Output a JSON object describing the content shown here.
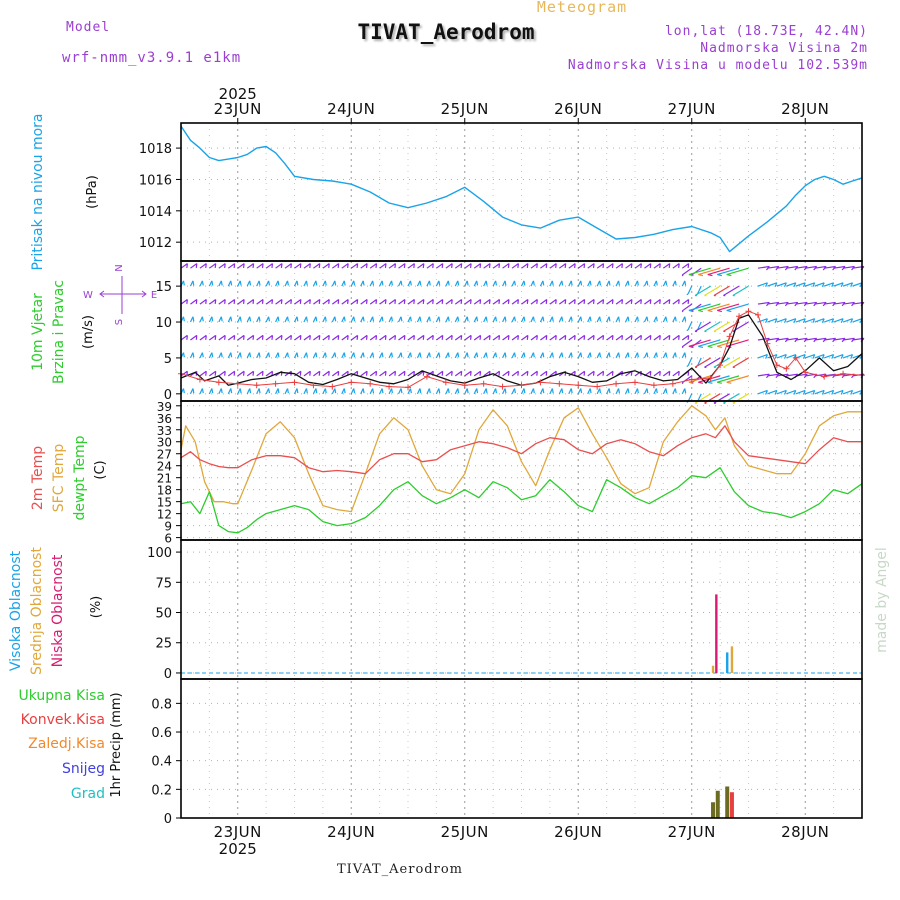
{
  "header": {
    "model_label": "Model",
    "model_name": "wrf-nmm_v3.9.1 e1km",
    "meteogram_label": "Meteogram",
    "station_title": "TIVAT_Aerodrom",
    "lonlat": "lon,lat (18.73E, 42.4N)",
    "elevation": "Nadmorska Visina 2m",
    "model_elevation": "Nadmorska Visina u modelu 102.539m"
  },
  "footer": {
    "station": "TIVAT_Aerodrom"
  },
  "watermark": "made by Angel",
  "time_axis": {
    "year": "2025",
    "days": [
      "23JUN",
      "24JUN",
      "25JUN",
      "26JUN",
      "27JUN",
      "28JUN"
    ],
    "start_hour": -12,
    "end_hour": 132
  },
  "compass": {
    "north": "N",
    "south": "S",
    "west": "W",
    "east": "E"
  },
  "colors": {
    "pressure": "#1aa3e8",
    "wind_speed": "#111111",
    "gust": "#e84040",
    "temp2m": "#e85050",
    "sfc_temp": "#e0a83c",
    "dewpoint": "#2ecc2e",
    "high_cloud": "#1aa3e8",
    "mid_cloud": "#e0a83c",
    "low_cloud": "#d81b70",
    "total_precip": "#2ecc2e",
    "conv_precip": "#e84040",
    "frozen_precip": "#f08a2c",
    "snow": "#4040e0",
    "graupel": "#20c0c0",
    "precip_bar": "#6b6b22"
  },
  "chart_data": [
    {
      "type": "line",
      "panel": "pressure",
      "ylabel_left": "Pritisak na nivou mora",
      "ylabel_unit": "(hPa)",
      "yticks": [
        1012,
        1014,
        1016,
        1018
      ],
      "ylim": [
        1010.8,
        1019.6
      ],
      "x_units": "hours from 23JUN 00",
      "series": [
        {
          "x": [
            -12,
            -10,
            -8,
            -6,
            -4,
            -2,
            0,
            2,
            4,
            6,
            8,
            10,
            12,
            16,
            20,
            22,
            24,
            28,
            32,
            36,
            40,
            44,
            48,
            52,
            56,
            60,
            64,
            68,
            72,
            76,
            80,
            84,
            88,
            92,
            96,
            100,
            102,
            104,
            108,
            112,
            116,
            118,
            120,
            122,
            124,
            126,
            128,
            130,
            132
          ],
          "y": [
            1019.4,
            1018.5,
            1018.0,
            1017.4,
            1017.2,
            1017.3,
            1017.4,
            1017.6,
            1018.0,
            1018.1,
            1017.7,
            1017.0,
            1016.2,
            1016.0,
            1015.9,
            1015.8,
            1015.7,
            1015.2,
            1014.5,
            1014.2,
            1014.5,
            1014.9,
            1015.5,
            1014.6,
            1013.6,
            1013.1,
            1012.9,
            1013.4,
            1013.6,
            1012.9,
            1012.2,
            1012.3,
            1012.5,
            1012.8,
            1013.0,
            1012.6,
            1012.3,
            1011.4,
            1012.4,
            1013.3,
            1014.3,
            1015.0,
            1015.6,
            1016.0,
            1016.2,
            1016.0,
            1015.7,
            1015.9,
            1016.1
          ]
        }
      ]
    },
    {
      "type": "line",
      "panel": "wind",
      "ylabel_left": [
        "10m Vjetar",
        "Brzina i Pravac"
      ],
      "ylabel_unit": "(m/s)",
      "yticks": [
        0,
        5,
        10,
        15
      ],
      "ylim": [
        -1,
        18.5
      ],
      "series": [
        {
          "name": "wind_speed",
          "x": [
            -12,
            -9,
            -7,
            -4,
            -2,
            0,
            3,
            6,
            9,
            12,
            15,
            18,
            21,
            24,
            27,
            30,
            33,
            36,
            39,
            42,
            45,
            48,
            51,
            54,
            57,
            60,
            63,
            66,
            69,
            72,
            75,
            78,
            81,
            84,
            87,
            90,
            93,
            96,
            99,
            102,
            104,
            106,
            108,
            111,
            114,
            117,
            120,
            123,
            126,
            129,
            132
          ],
          "y": [
            2.2,
            3.0,
            1.8,
            2.5,
            1.2,
            1.5,
            2.0,
            2.2,
            3.0,
            2.8,
            1.6,
            1.3,
            2.0,
            2.8,
            2.2,
            1.6,
            1.4,
            2.0,
            3.2,
            2.5,
            1.8,
            1.5,
            2.2,
            2.8,
            1.8,
            1.2,
            1.5,
            2.4,
            3.0,
            2.4,
            1.6,
            1.8,
            2.8,
            3.2,
            2.4,
            1.8,
            2.0,
            3.6,
            1.5,
            4.0,
            6.5,
            10.5,
            11.0,
            8.0,
            3.0,
            2.0,
            3.2,
            5.0,
            3.2,
            3.8,
            5.6
          ]
        },
        {
          "name": "gust",
          "x": [
            -12,
            -8,
            -4,
            0,
            4,
            8,
            12,
            16,
            20,
            24,
            28,
            32,
            36,
            40,
            44,
            48,
            52,
            56,
            60,
            64,
            68,
            72,
            76,
            80,
            84,
            88,
            92,
            96,
            100,
            102,
            104,
            106,
            108,
            110,
            112,
            114,
            116,
            118,
            120,
            124,
            128,
            132
          ],
          "y": [
            2.8,
            2.0,
            1.6,
            1.4,
            1.2,
            1.4,
            1.6,
            1.2,
            1.0,
            1.6,
            1.4,
            1.0,
            0.9,
            2.4,
            1.6,
            1.2,
            1.4,
            1.0,
            1.2,
            1.6,
            1.4,
            1.2,
            1.0,
            1.4,
            1.6,
            1.2,
            1.4,
            2.0,
            2.2,
            4.0,
            8.0,
            10.8,
            11.5,
            11.0,
            7.0,
            4.0,
            3.5,
            5.0,
            3.0,
            2.4,
            2.8,
            2.6
          ]
        }
      ]
    },
    {
      "type": "line",
      "panel": "temperature",
      "ylabel_left": [
        "2m Temp",
        "SFC Temp",
        "dewpt Temp"
      ],
      "ylabel_unit": "(C)",
      "yticks": [
        6,
        9,
        12,
        15,
        18,
        21,
        24,
        27,
        30,
        33,
        36,
        39
      ],
      "ylim": [
        5.4,
        40.2
      ],
      "series": [
        {
          "name": "2m Temp",
          "x": [
            -12,
            -10,
            -8,
            -6,
            -4,
            -2,
            0,
            3,
            6,
            9,
            12,
            15,
            18,
            21,
            24,
            27,
            30,
            33,
            36,
            39,
            42,
            45,
            48,
            51,
            54,
            57,
            60,
            63,
            66,
            69,
            72,
            75,
            78,
            81,
            84,
            87,
            90,
            93,
            96,
            99,
            101,
            103,
            105,
            108,
            111,
            114,
            117,
            120,
            123,
            126,
            129,
            132
          ],
          "y": [
            26.0,
            27.5,
            25.5,
            24.5,
            23.8,
            23.5,
            23.5,
            25.5,
            26.5,
            26.5,
            26.0,
            23.5,
            22.5,
            22.8,
            22.5,
            22.0,
            25.5,
            27.0,
            27.0,
            25.0,
            25.5,
            28.0,
            29.0,
            30.0,
            29.5,
            28.5,
            27.0,
            29.5,
            31.0,
            30.5,
            28.0,
            27.0,
            29.5,
            30.5,
            29.5,
            27.5,
            26.5,
            29.0,
            31.0,
            32.0,
            31.0,
            34.0,
            30.0,
            26.5,
            26.0,
            25.5,
            25.0,
            24.5,
            28.0,
            31.0,
            30.0,
            30.0
          ]
        },
        {
          "name": "SFC Temp",
          "x": [
            -12,
            -11,
            -9,
            -7,
            -5,
            -3,
            -1,
            0,
            3,
            6,
            9,
            12,
            15,
            18,
            21,
            24,
            27,
            30,
            33,
            36,
            39,
            42,
            45,
            48,
            51,
            54,
            57,
            60,
            63,
            66,
            69,
            72,
            75,
            78,
            81,
            84,
            87,
            90,
            93,
            96,
            99,
            101,
            103,
            105,
            108,
            111,
            114,
            117,
            120,
            123,
            126,
            129,
            132
          ],
          "y": [
            28.0,
            34.0,
            30.0,
            20.0,
            15.0,
            15.0,
            14.5,
            14.5,
            23.0,
            32.0,
            35.0,
            31.0,
            22.0,
            14.0,
            13.0,
            12.5,
            22.0,
            32.0,
            36.0,
            33.0,
            24.0,
            18.0,
            17.0,
            22.0,
            33.0,
            38.0,
            34.0,
            25.0,
            19.0,
            28.0,
            36.0,
            38.5,
            32.0,
            26.0,
            19.5,
            17.0,
            18.5,
            30.0,
            35.0,
            39.0,
            36.5,
            33.0,
            36.0,
            29.0,
            24.0,
            23.0,
            22.0,
            22.0,
            27.0,
            34.0,
            36.5,
            37.5,
            37.5
          ]
        },
        {
          "name": "dewpt Temp",
          "x": [
            -12,
            -10,
            -8,
            -6,
            -4,
            -2,
            0,
            2,
            4,
            6,
            9,
            12,
            15,
            18,
            21,
            24,
            27,
            30,
            33,
            36,
            39,
            42,
            45,
            48,
            51,
            54,
            57,
            60,
            63,
            66,
            69,
            72,
            75,
            78,
            81,
            84,
            87,
            90,
            93,
            96,
            99,
            102,
            105,
            108,
            111,
            114,
            117,
            120,
            123,
            126,
            129,
            132
          ],
          "y": [
            14.5,
            15.0,
            12.0,
            17.5,
            9.0,
            7.5,
            7.2,
            8.5,
            10.5,
            12.0,
            13.0,
            14.0,
            13.0,
            10.0,
            9.0,
            9.5,
            11.0,
            14.0,
            18.0,
            20.0,
            16.5,
            14.5,
            16.0,
            18.0,
            16.0,
            20.0,
            18.5,
            15.5,
            16.5,
            20.5,
            17.5,
            14.0,
            12.5,
            20.5,
            18.5,
            16.0,
            14.5,
            16.5,
            18.5,
            21.5,
            21.0,
            23.5,
            17.5,
            14.0,
            12.5,
            12.0,
            11.0,
            12.5,
            14.5,
            18.0,
            17.0,
            19.5
          ]
        }
      ]
    },
    {
      "type": "bar",
      "panel": "clouds",
      "ylabel_left": [
        "Visoka Oblacnost",
        "Srednja Oblacnost",
        "Niska Oblacnost"
      ],
      "ylabel_unit": "(%)",
      "yticks": [
        0,
        25,
        50,
        75,
        100
      ],
      "ylim": [
        -5,
        110
      ],
      "series": [
        {
          "name": "Visoka Oblacnost",
          "x": [
            103.5
          ],
          "values": [
            17
          ]
        },
        {
          "name": "Srednja Oblacnost",
          "x": [
            100.5,
            104.5
          ],
          "values": [
            6,
            22
          ]
        },
        {
          "name": "Niska Oblacnost",
          "x": [
            101.2
          ],
          "values": [
            65
          ]
        }
      ]
    },
    {
      "type": "bar",
      "panel": "precipitation",
      "ylabel_left": [
        "Ukupna Kisa",
        "Konvek.Kisa",
        "Zaledj.Kisa",
        "Snijeg",
        "Grad"
      ],
      "ylabel_unit": "1hr Precip (mm)",
      "yticks": [
        0,
        0.2,
        0.4,
        0.6,
        0.8
      ],
      "ylim": [
        0,
        0.97
      ],
      "series": [
        {
          "name": "Ukupna Kisa",
          "x": [
            100.5,
            101.5,
            103.5
          ],
          "values": [
            0.11,
            0.19,
            0.22
          ]
        },
        {
          "name": "Konvek.Kisa",
          "x": [
            104.5
          ],
          "values": [
            0.18
          ]
        }
      ]
    },
    {
      "type": "wind_barbs",
      "panel": "wind",
      "y_rows": [
        0,
        2.5,
        5,
        7.5,
        10,
        12.5,
        15,
        17.5
      ],
      "x_step_hours": 2,
      "regimes": [
        {
          "from": -12,
          "to": 96,
          "direction_deg": 20,
          "speed": 4
        },
        {
          "from": 96,
          "to": 100,
          "direction_deg": 200,
          "speed": 8
        },
        {
          "from": 100,
          "to": 110,
          "direction_deg": 225,
          "speed": 14
        },
        {
          "from": 110,
          "to": 132,
          "direction_deg": 60,
          "speed": 5
        }
      ]
    }
  ]
}
